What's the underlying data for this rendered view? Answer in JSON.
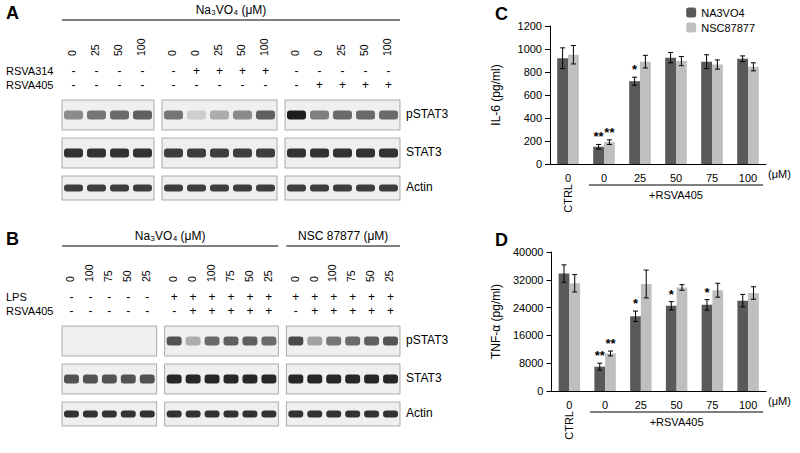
{
  "blots": [
    {
      "panel": "A",
      "headers": [
        {
          "text": "Na₃VO₄ (μM)",
          "blocks": [
            0,
            2
          ]
        }
      ],
      "row_labels": [
        null,
        "RSVA314",
        "RSVA405"
      ],
      "band_labels": [
        "pSTAT3",
        "STAT3",
        "Actin"
      ],
      "blocks": [
        {
          "conditions": [
            [
              "0",
              "25",
              "50",
              "100"
            ],
            [
              "-",
              "-",
              "-",
              "-"
            ],
            [
              "-",
              "-",
              "-",
              "-"
            ]
          ],
          "intensity": [
            [
              0.45,
              0.55,
              0.6,
              0.65
            ],
            [
              0.85,
              0.85,
              0.85,
              0.85
            ],
            [
              0.8,
              0.8,
              0.8,
              0.8
            ]
          ]
        },
        {
          "conditions": [
            [
              "0",
              "0",
              "25",
              "50",
              "100"
            ],
            [
              "-",
              "+",
              "+",
              "+",
              "+"
            ],
            [
              "-",
              "-",
              "-",
              "-",
              "-"
            ]
          ],
          "intensity": [
            [
              0.55,
              0.15,
              0.3,
              0.45,
              0.65
            ],
            [
              0.8,
              0.8,
              0.8,
              0.8,
              0.8
            ],
            [
              0.8,
              0.8,
              0.8,
              0.8,
              0.8
            ]
          ]
        },
        {
          "conditions": [
            [
              "0",
              "0",
              "25",
              "50",
              "100"
            ],
            [
              "-",
              "-",
              "-",
              "-",
              "-"
            ],
            [
              "-",
              "+",
              "+",
              "+",
              "+"
            ]
          ],
          "intensity": [
            [
              0.95,
              0.5,
              0.6,
              0.6,
              0.6
            ],
            [
              0.85,
              0.85,
              0.85,
              0.85,
              0.85
            ],
            [
              0.8,
              0.8,
              0.8,
              0.8,
              0.8
            ]
          ]
        }
      ]
    },
    {
      "panel": "B",
      "headers": [
        {
          "text": "Na₃VO₄ (μM)",
          "blocks": [
            0,
            1
          ]
        },
        {
          "text": "NSC 87877 (μM)",
          "blocks": [
            2,
            2
          ]
        }
      ],
      "row_labels": [
        null,
        "LPS",
        "RSVA405"
      ],
      "band_labels": [
        "pSTAT3",
        "STAT3",
        "Actin"
      ],
      "blocks": [
        {
          "conditions": [
            [
              "0",
              "100",
              "75",
              "50",
              "25"
            ],
            [
              "-",
              "-",
              "-",
              "-",
              "-"
            ],
            [
              "-",
              "-",
              "-",
              "-",
              "-"
            ]
          ],
          "intensity": [
            [
              0,
              0,
              0,
              0,
              0
            ],
            [
              0.7,
              0.7,
              0.7,
              0.7,
              0.7
            ],
            [
              0.85,
              0.85,
              0.85,
              0.85,
              0.85
            ]
          ]
        },
        {
          "conditions": [
            [
              "0",
              "0",
              "100",
              "75",
              "50",
              "25"
            ],
            [
              "+",
              "+",
              "+",
              "+",
              "+",
              "+"
            ],
            [
              "-",
              "+",
              "+",
              "+",
              "+",
              "+"
            ]
          ],
          "intensity": [
            [
              0.7,
              0.3,
              0.6,
              0.65,
              0.65,
              0.6
            ],
            [
              0.9,
              0.9,
              0.9,
              0.9,
              0.9,
              0.9
            ],
            [
              0.85,
              0.85,
              0.85,
              0.85,
              0.85,
              0.85
            ]
          ]
        },
        {
          "conditions": [
            [
              "0",
              "0",
              "100",
              "75",
              "50",
              "25"
            ],
            [
              "+",
              "+",
              "+",
              "+",
              "+",
              "+"
            ],
            [
              "-",
              "+",
              "+",
              "+",
              "+",
              "+"
            ]
          ],
          "intensity": [
            [
              0.75,
              0.35,
              0.55,
              0.6,
              0.65,
              0.7
            ],
            [
              0.9,
              0.9,
              0.9,
              0.9,
              0.9,
              0.9
            ],
            [
              0.85,
              0.85,
              0.85,
              0.85,
              0.85,
              0.85
            ]
          ]
        }
      ]
    }
  ],
  "chart_data": [
    {
      "type": "bar",
      "title": "C",
      "categories": [
        "0",
        "0",
        "25",
        "50",
        "75",
        "100"
      ],
      "x_groups": [
        {
          "label": "CTRL",
          "from": 0,
          "to": 0
        },
        {
          "label": "+RSVA405",
          "from": 1,
          "to": 5
        }
      ],
      "xlabel": "(μM)",
      "ylabel": "IL-6 (pg/ml)",
      "ylim": [
        0,
        1200
      ],
      "yticks": [
        0,
        200,
        400,
        600,
        800,
        1000,
        1200
      ],
      "grid": false,
      "legend": "upper right",
      "series": [
        {
          "name": "NA3VO4",
          "color": "#595959",
          "values": [
            920,
            150,
            720,
            925,
            890,
            915
          ],
          "errors": [
            90,
            20,
            35,
            45,
            60,
            25
          ],
          "significance": [
            null,
            "**",
            "*",
            null,
            null,
            null
          ]
        },
        {
          "name": "NSC87877",
          "color": "#bfbfbf",
          "values": [
            950,
            190,
            890,
            895,
            865,
            845
          ],
          "errors": [
            80,
            20,
            55,
            40,
            40,
            35
          ],
          "significance": [
            null,
            "**",
            null,
            null,
            null,
            null
          ]
        }
      ]
    },
    {
      "type": "bar",
      "title": "D",
      "categories": [
        "0",
        "0",
        "25",
        "50",
        "75",
        "100"
      ],
      "x_groups": [
        {
          "label": "CTRL",
          "from": 0,
          "to": 0
        },
        {
          "label": "+RSVA405",
          "from": 1,
          "to": 5
        }
      ],
      "xlabel": "(μM)",
      "ylabel": "TNF-α (pg/ml)",
      "ylim": [
        0,
        40000
      ],
      "yticks": [
        0,
        8000,
        16000,
        24000,
        32000,
        40000
      ],
      "grid": false,
      "series": [
        {
          "color": "#595959",
          "values": [
            33800,
            7000,
            21500,
            24500,
            24800,
            26000
          ],
          "errors": [
            2500,
            1000,
            1500,
            1200,
            1500,
            1800
          ],
          "significance": [
            null,
            "**",
            "*",
            "*",
            "*",
            null
          ]
        },
        {
          "color": "#bfbfbf",
          "values": [
            31000,
            10800,
            30800,
            29800,
            29000,
            28200
          ],
          "errors": [
            2500,
            700,
            4000,
            800,
            2000,
            1800
          ],
          "significance": [
            null,
            "**",
            null,
            null,
            null,
            null
          ]
        }
      ]
    }
  ]
}
